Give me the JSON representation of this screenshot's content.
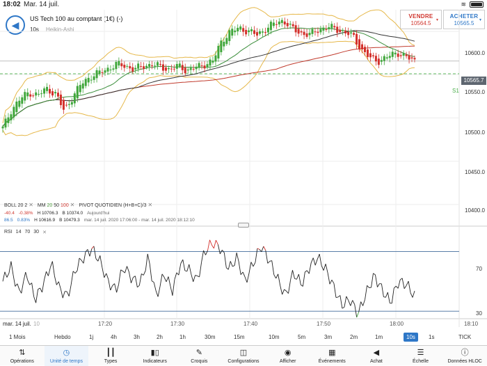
{
  "status": {
    "time": "18:02",
    "date": "Mar. 14 juil."
  },
  "header": {
    "title": "US Tech 100 au comptant (1€) (-)",
    "interval": "10s",
    "chart_type": "Heikin-Ashi",
    "sell": {
      "label": "VENDRE",
      "price": "10564.5"
    },
    "buy": {
      "label": "ACHETER",
      "price": "10565.5"
    }
  },
  "price_axis": {
    "labels": [
      "10600.0",
      "10550.0",
      "10500.0",
      "10450.0",
      "10400.0"
    ],
    "last_price": "10565.7",
    "s1_label": "S1"
  },
  "indicators": {
    "boll": {
      "name": "BOLL",
      "p1": "20",
      "p2": "2"
    },
    "mm": {
      "name": "MM",
      "p1": "20",
      "p2": "50",
      "p3": "100"
    },
    "pivot": {
      "name": "PIVOT",
      "text": "QUOTIDIEN",
      "formula": "(H+B+C)/3"
    },
    "row1": {
      "change": "-40.4",
      "pct": "-0.38%",
      "high": "H 10706.3",
      "low": "B 10374.0",
      "period": "Aujourd'hui"
    },
    "row2": {
      "change": "86.5",
      "pct": "0.83%",
      "high": "H 10616.9",
      "low": "B 10479.3",
      "period": "mar. 14 juil. 2020 17:06:00 - mar. 14 juil. 2020 18:12:10"
    },
    "rsi": {
      "name": "RSI",
      "p1": "14",
      "p2": "70",
      "p3": "30"
    }
  },
  "rsi_axis": {
    "upper": "70",
    "lower": "30"
  },
  "time_axis": {
    "start": "mar. 14 juil.",
    "start_mark": "10",
    "labels": [
      "17:20",
      "17:30",
      "17:40",
      "17:50",
      "18:00",
      "18:10"
    ]
  },
  "timeframes": [
    "1 Mois",
    "Hebdo",
    "1j",
    "4h",
    "3h",
    "2h",
    "1h",
    "30m",
    "15m",
    "10m",
    "5m",
    "3m",
    "2m",
    "1m",
    "10s",
    "1s",
    "TICK"
  ],
  "selected_timeframe": "10s",
  "toolbar": [
    {
      "label": "Opérations",
      "icon": "updown-arrows-icon"
    },
    {
      "label": "Unité de temps",
      "icon": "clock-icon"
    },
    {
      "label": "Types",
      "icon": "candles-icon"
    },
    {
      "label": "Indicateurs",
      "icon": "indicator-bars-icon"
    },
    {
      "label": "Croquis",
      "icon": "pencil-icon"
    },
    {
      "label": "Configurations",
      "icon": "layout-icon"
    },
    {
      "label": "Afficher",
      "icon": "eye-icon"
    },
    {
      "label": "Événements",
      "icon": "calendar-icon"
    },
    {
      "label": "Achat",
      "icon": "megaphone-icon"
    },
    {
      "label": "Échelle",
      "icon": "scale-icon"
    },
    {
      "label": "Données HLOC",
      "icon": "info-icon"
    }
  ],
  "selected_tool": "Unité de temps",
  "colors": {
    "up": "#3fa63a",
    "down": "#d3302b",
    "accent": "#2e77c7",
    "band": "#e6b84a",
    "ma20": "#3a8d3a",
    "ma50": "#333333",
    "ma100": "#c0392b"
  },
  "chart_data": {
    "type": "candlestick",
    "y_range": [
      10375,
      10625
    ],
    "x_labels": [
      "17:20",
      "17:30",
      "17:40",
      "17:50",
      "18:00",
      "18:10"
    ],
    "close_path": [
      10488,
      10510,
      10522,
      10530,
      10526,
      10534,
      10528,
      10508,
      10525,
      10540,
      10548,
      10552,
      10557,
      10562,
      10560,
      10556,
      10560,
      10562,
      10559,
      10556,
      10560,
      10555,
      10558,
      10562,
      10566,
      10590,
      10600,
      10604,
      10600,
      10596,
      10603,
      10609,
      10613,
      10603,
      10598,
      10596,
      10602,
      10605,
      10603,
      10599,
      10594,
      10578,
      10568,
      10566,
      10571,
      10576,
      10570,
      10566
    ],
    "rsi_range": [
      25,
      80
    ],
    "rsi_path": [
      50,
      60,
      42,
      55,
      38,
      48,
      62,
      45,
      40,
      58,
      66,
      72,
      64,
      50,
      44,
      60,
      52,
      48,
      66,
      40,
      55,
      44,
      62,
      58,
      50,
      70,
      76,
      72,
      58,
      66,
      50,
      62,
      74,
      64,
      52,
      40,
      56,
      48,
      60,
      66,
      58,
      46,
      34,
      38,
      28,
      42,
      54,
      44,
      36,
      50,
      48,
      40
    ]
  }
}
